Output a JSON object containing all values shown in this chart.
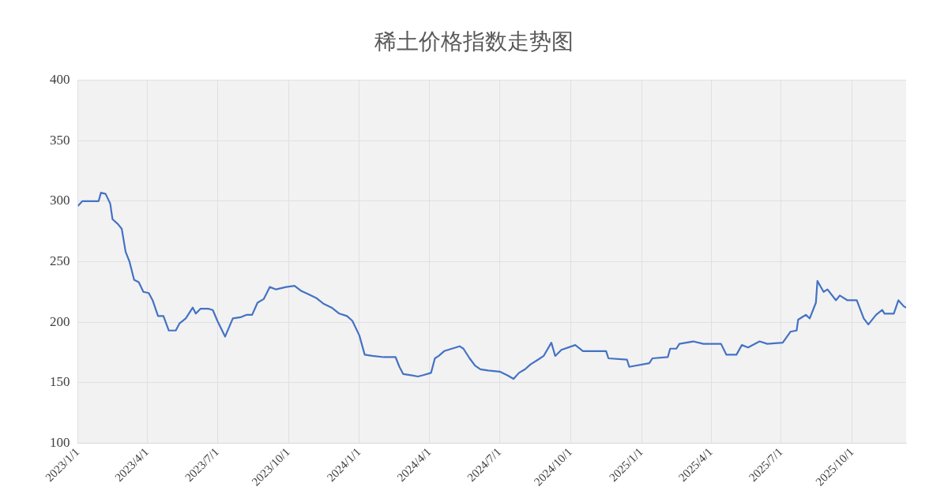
{
  "chart_data": {
    "type": "line",
    "title": "稀土价格指数走势图",
    "x": [
      "2023-01-01",
      "2023-01-07",
      "2023-01-28",
      "2023-01-31",
      "2023-02-06",
      "2023-02-12",
      "2023-02-15",
      "2023-02-22",
      "2023-02-27",
      "2023-03-04",
      "2023-03-09",
      "2023-03-15",
      "2023-03-21",
      "2023-03-27",
      "2023-04-03",
      "2023-04-08",
      "2023-04-15",
      "2023-04-22",
      "2023-04-29",
      "2023-05-08",
      "2023-05-13",
      "2023-05-21",
      "2023-05-30",
      "2023-06-03",
      "2023-06-09",
      "2023-06-19",
      "2023-06-25",
      "2023-07-01",
      "2023-07-11",
      "2023-07-21",
      "2023-07-31",
      "2023-08-08",
      "2023-08-15",
      "2023-08-22",
      "2023-08-30",
      "2023-09-07",
      "2023-09-15",
      "2023-09-28",
      "2023-10-09",
      "2023-10-17",
      "2023-10-27",
      "2023-11-06",
      "2023-11-16",
      "2023-11-26",
      "2023-12-06",
      "2023-12-16",
      "2023-12-23",
      "2024-01-01",
      "2024-01-08",
      "2024-01-18",
      "2024-02-02",
      "2024-02-17",
      "2024-02-22",
      "2024-02-27",
      "2024-03-08",
      "2024-03-17",
      "2024-03-23",
      "2024-04-03",
      "2024-04-08",
      "2024-04-13",
      "2024-04-20",
      "2024-04-30",
      "2024-05-10",
      "2024-05-15",
      "2024-05-23",
      "2024-05-30",
      "2024-06-06",
      "2024-06-16",
      "2024-07-01",
      "2024-07-11",
      "2024-07-19",
      "2024-07-26",
      "2024-08-03",
      "2024-08-10",
      "2024-08-20",
      "2024-08-27",
      "2024-09-06",
      "2024-09-11",
      "2024-09-19",
      "2024-10-07",
      "2024-10-17",
      "2024-11-16",
      "2024-11-19",
      "2024-12-13",
      "2024-12-16",
      "2025-01-11",
      "2025-01-15",
      "2025-02-04",
      "2025-02-07",
      "2025-02-15",
      "2025-02-19",
      "2025-03-09",
      "2025-03-22",
      "2025-04-14",
      "2025-04-21",
      "2025-05-04",
      "2025-05-11",
      "2025-05-19",
      "2025-06-03",
      "2025-06-13",
      "2025-07-03",
      "2025-07-13",
      "2025-07-21",
      "2025-07-23",
      "2025-08-02",
      "2025-08-07",
      "2025-08-15",
      "2025-08-17",
      "2025-08-25",
      "2025-08-30",
      "2025-09-10",
      "2025-09-15",
      "2025-09-25",
      "2025-10-07",
      "2025-10-16",
      "2025-10-22",
      "2025-11-01",
      "2025-11-09",
      "2025-11-12",
      "2025-11-24",
      "2025-11-30",
      "2025-12-07",
      "2025-12-10"
    ],
    "series": [
      {
        "color": "#4472c4",
        "values": [
          296,
          300,
          300,
          307,
          306,
          298,
          285,
          281,
          277,
          258,
          250,
          235,
          233,
          225,
          224,
          218,
          205,
          205,
          193,
          193,
          199,
          203,
          212,
          207,
          211,
          211,
          210,
          201,
          188,
          203,
          204,
          206,
          206,
          216,
          219,
          229,
          227,
          229,
          230,
          226,
          223,
          220,
          215,
          212,
          207,
          205,
          201,
          189,
          173,
          172,
          171,
          171,
          163,
          157,
          156,
          155,
          156,
          158,
          170,
          172,
          176,
          178,
          180,
          178,
          170,
          164,
          161,
          160,
          159,
          156,
          153,
          158,
          161,
          165,
          169,
          172,
          183,
          172,
          177,
          181,
          176,
          176,
          170,
          169,
          163,
          166,
          170,
          171,
          178,
          178,
          182,
          184,
          182,
          182,
          173,
          173,
          181,
          179,
          184,
          182,
          183,
          192,
          193,
          202,
          206,
          203,
          216,
          234,
          225,
          227,
          218,
          222,
          218,
          218,
          203,
          198,
          206,
          210,
          207,
          207,
          218,
          213,
          212
        ]
      }
    ],
    "xlim": [
      "2023-01-01",
      "2025-12-10"
    ],
    "xticks": [
      {
        "value": "2023-01-01",
        "label": "2023/1/1"
      },
      {
        "value": "2023-04-01",
        "label": "2023/4/1"
      },
      {
        "value": "2023-07-01",
        "label": "2023/7/1"
      },
      {
        "value": "2023-10-01",
        "label": "2023/10/1"
      },
      {
        "value": "2024-01-01",
        "label": "2024/1/1"
      },
      {
        "value": "2024-04-01",
        "label": "2024/4/1"
      },
      {
        "value": "2024-07-01",
        "label": "2024/7/1"
      },
      {
        "value": "2024-10-01",
        "label": "2024/10/1"
      },
      {
        "value": "2025-01-01",
        "label": "2025/1/1"
      },
      {
        "value": "2025-04-01",
        "label": "2025/4/1"
      },
      {
        "value": "2025-07-01",
        "label": "2025/7/1"
      },
      {
        "value": "2025-10-01",
        "label": "2025/10/1"
      }
    ],
    "ylim": [
      100,
      400
    ],
    "yticks": [
      100,
      150,
      200,
      250,
      300,
      350,
      400
    ],
    "grid": true,
    "legend": false,
    "marker": "none",
    "line_style": "solid"
  }
}
